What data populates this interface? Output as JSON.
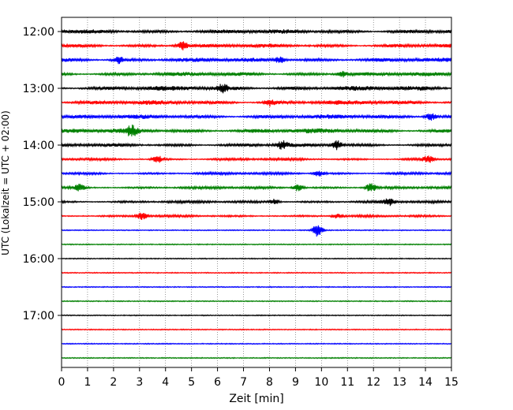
{
  "chart_data": {
    "type": "line",
    "title": "",
    "xlabel": "Zeit  [min]",
    "ylabel": "UTC (Lokalzeit = UTC + 02:00)",
    "xlim": [
      0,
      15
    ],
    "x_ticks": [
      "0",
      "1",
      "2",
      "3",
      "4",
      "5",
      "6",
      "7",
      "8",
      "9",
      "10",
      "11",
      "12",
      "13",
      "14",
      "15"
    ],
    "y_ticks": [
      "12:00",
      "13:00",
      "14:00",
      "15:00",
      "16:00",
      "17:00"
    ],
    "grid": "vertical dotted at each minute",
    "minutes_per_trace": 15,
    "trace_colors": [
      "#000000",
      "#ff0000",
      "#0000ff",
      "#008000"
    ],
    "traces": [
      {
        "start": "12:00",
        "color": "#000000",
        "amplitude": 0.55,
        "events": []
      },
      {
        "start": "12:15",
        "color": "#ff0000",
        "amplitude": 0.5,
        "events": [
          {
            "x": 4.65,
            "amp": 0.9
          }
        ]
      },
      {
        "start": "12:30",
        "color": "#0000ff",
        "amplitude": 0.55,
        "events": [
          {
            "x": 2.2,
            "amp": 0.7
          },
          {
            "x": 8.4,
            "amp": 0.6
          }
        ]
      },
      {
        "start": "12:45",
        "color": "#008000",
        "amplitude": 0.5,
        "events": [
          {
            "x": 10.8,
            "amp": 0.6
          }
        ]
      },
      {
        "start": "13:00",
        "color": "#000000",
        "amplitude": 0.6,
        "events": [
          {
            "x": 6.2,
            "amp": 0.7
          }
        ]
      },
      {
        "start": "13:15",
        "color": "#ff0000",
        "amplitude": 0.55,
        "events": [
          {
            "x": 8.0,
            "amp": 0.7
          }
        ]
      },
      {
        "start": "13:30",
        "color": "#0000ff",
        "amplitude": 0.55,
        "events": [
          {
            "x": 14.2,
            "amp": 0.8
          }
        ]
      },
      {
        "start": "13:45",
        "color": "#008000",
        "amplitude": 0.6,
        "events": [
          {
            "x": 2.7,
            "amp": 1.0
          }
        ]
      },
      {
        "start": "14:00",
        "color": "#000000",
        "amplitude": 0.45,
        "events": [
          {
            "x": 8.5,
            "amp": 0.9
          },
          {
            "x": 10.6,
            "amp": 1.0
          }
        ]
      },
      {
        "start": "14:15",
        "color": "#ff0000",
        "amplitude": 0.35,
        "events": [
          {
            "x": 3.7,
            "amp": 0.7
          },
          {
            "x": 14.1,
            "amp": 0.7
          }
        ]
      },
      {
        "start": "14:30",
        "color": "#0000ff",
        "amplitude": 0.35,
        "events": [
          {
            "x": 9.9,
            "amp": 0.6
          }
        ]
      },
      {
        "start": "14:45",
        "color": "#008000",
        "amplitude": 0.35,
        "events": [
          {
            "x": 0.7,
            "amp": 0.7
          },
          {
            "x": 9.1,
            "amp": 0.8
          },
          {
            "x": 11.9,
            "amp": 0.9
          }
        ]
      },
      {
        "start": "15:00",
        "color": "#000000",
        "amplitude": 0.35,
        "events": [
          {
            "x": 8.2,
            "amp": 0.6
          },
          {
            "x": 12.6,
            "amp": 0.7
          }
        ]
      },
      {
        "start": "15:15",
        "color": "#ff0000",
        "amplitude": 0.3,
        "events": [
          {
            "x": 3.1,
            "amp": 0.8
          },
          {
            "x": 10.6,
            "amp": 0.5
          }
        ]
      },
      {
        "start": "15:30",
        "color": "#0000ff",
        "amplitude": 0.1,
        "events": [
          {
            "x": 9.85,
            "amp": 1.5
          }
        ]
      },
      {
        "start": "15:45",
        "color": "#008000",
        "amplitude": 0.1,
        "events": []
      },
      {
        "start": "16:00",
        "color": "#000000",
        "amplitude": 0.1,
        "events": []
      },
      {
        "start": "16:15",
        "color": "#ff0000",
        "amplitude": 0.1,
        "events": []
      },
      {
        "start": "16:30",
        "color": "#0000ff",
        "amplitude": 0.1,
        "events": []
      },
      {
        "start": "16:45",
        "color": "#008000",
        "amplitude": 0.1,
        "events": []
      },
      {
        "start": "17:00",
        "color": "#000000",
        "amplitude": 0.1,
        "events": []
      },
      {
        "start": "17:15",
        "color": "#ff0000",
        "amplitude": 0.1,
        "events": []
      },
      {
        "start": "17:30",
        "color": "#0000ff",
        "amplitude": 0.1,
        "events": []
      },
      {
        "start": "17:45",
        "color": "#008000",
        "amplitude": 0.1,
        "events": []
      }
    ]
  }
}
